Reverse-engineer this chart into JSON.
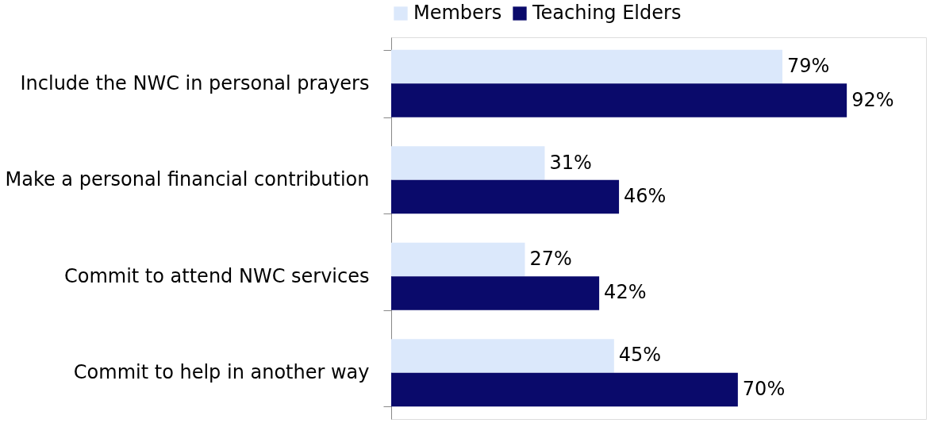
{
  "chart_data": {
    "type": "bar",
    "orientation": "horizontal",
    "categories": [
      "Include the NWC in personal prayers",
      "Make a personal financial contribution",
      "Commit to attend NWC services",
      "Commit to help in another way"
    ],
    "series": [
      {
        "name": "Members",
        "color": "#dbe8fb",
        "values": [
          79,
          31,
          27,
          45
        ],
        "value_labels": [
          "79%",
          "31%",
          "27%",
          "45%"
        ]
      },
      {
        "name": "Teaching Elders",
        "color": "#0a0a6b",
        "values": [
          92,
          46,
          42,
          70
        ],
        "value_labels": [
          "92%",
          "46%",
          "42%",
          "70%"
        ]
      }
    ],
    "xlim": [
      0,
      108
    ],
    "tick_labels": "y",
    "legend": "top"
  }
}
